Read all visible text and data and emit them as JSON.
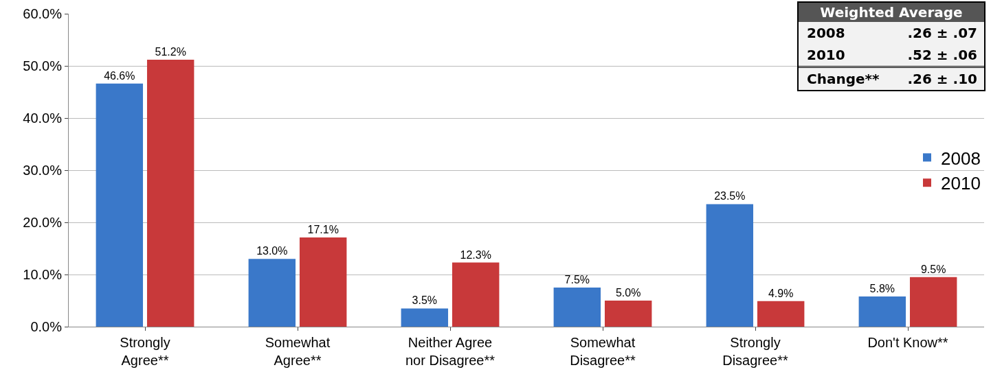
{
  "chart_data": {
    "type": "bar",
    "categories": [
      "Strongly\nAgree**",
      "Somewhat\nAgree**",
      "Neither Agree\nnor Disagree**",
      "Somewhat\nDisagree**",
      "Strongly\nDisagree**",
      "Don't Know**"
    ],
    "series": [
      {
        "name": "2008",
        "color": "#3a78c9",
        "values": [
          46.6,
          13.0,
          3.5,
          7.5,
          23.5,
          5.8
        ],
        "value_labels": [
          "46.6%",
          "13.0%",
          "3.5%",
          "7.5%",
          "23.5%",
          "5.8%"
        ]
      },
      {
        "name": "2010",
        "color": "#c8393a",
        "values": [
          51.2,
          17.1,
          12.3,
          5.0,
          4.9,
          9.5
        ],
        "value_labels": [
          "51.2%",
          "17.1%",
          "12.3%",
          "5.0%",
          "4.9%",
          "9.5%"
        ]
      }
    ],
    "ylim": [
      0,
      60
    ],
    "yticks": [
      {
        "value": 0,
        "label": "0.0%"
      },
      {
        "value": 10,
        "label": "10.0%"
      },
      {
        "value": 20,
        "label": "20.0%"
      },
      {
        "value": 30,
        "label": "30.0%"
      },
      {
        "value": 40,
        "label": "40.0%"
      },
      {
        "value": 50,
        "label": "50.0%"
      },
      {
        "value": 60,
        "label": "60.0%"
      }
    ],
    "grid": "y",
    "legend": "right",
    "annotations": [
      "Weighted Average",
      "2008",
      ".26 ± .07",
      "2010",
      ".52 ± .06",
      "Change**",
      ".26 ± .10"
    ]
  }
}
